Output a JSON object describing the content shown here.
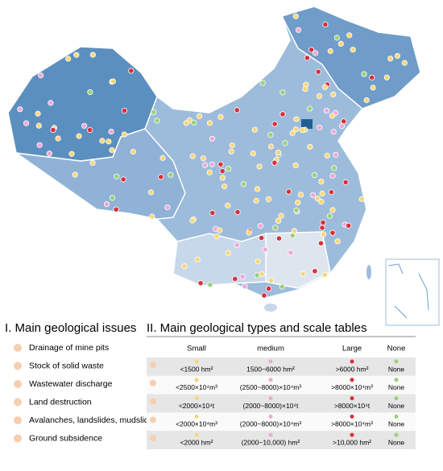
{
  "legend_issues": {
    "title": "I. Main geological issues",
    "items": [
      "Drainage of mine pits",
      "Stock of solid waste",
      "Wastewater discharge",
      "Land destruction",
      "Avalanches, landslides, mudslides",
      "Ground subsidence"
    ]
  },
  "scale_table": {
    "title": "II. Main geological types and scale tables",
    "header": [
      "Small",
      "medium",
      "Large",
      "None"
    ],
    "rows": [
      [
        "<1500 hm²",
        "1500~6000 hm²",
        ">6000 hm²",
        "None"
      ],
      [
        "<2500×10⁴m³",
        "(2500~8000)×10⁴m³",
        ">8000×10⁴m³",
        "None"
      ],
      [
        "<2000×10⁴t",
        "(2000~8000)×10⁴t",
        ">8000×10⁴t",
        "None"
      ],
      [
        "<2000×10⁴m³",
        "(2000~8000)×10⁴m³",
        ">8000×10⁴m³",
        "None"
      ],
      [
        "<2000 hm²",
        "(2000~10,000) hm²",
        ">10,000 hm²",
        "None"
      ]
    ]
  }
}
